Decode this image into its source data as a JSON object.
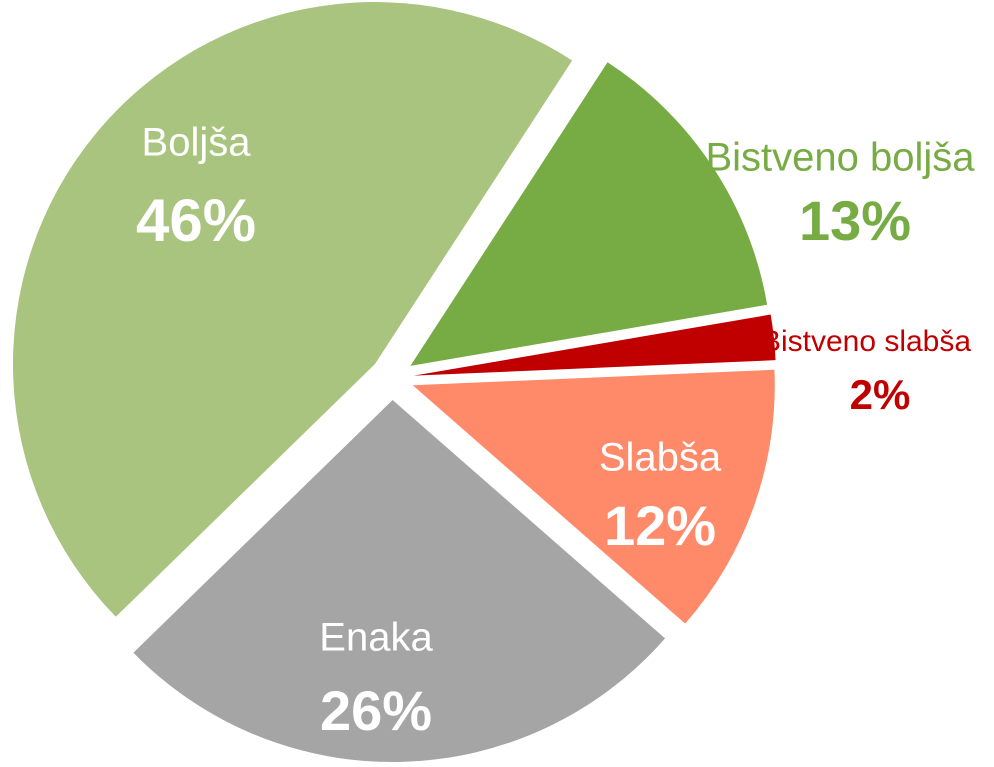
{
  "chart_data": {
    "type": "pie",
    "categories": [
      "Bistveno boljša",
      "Bistveno slabša",
      "Slabša",
      "Enaka",
      "Boljša"
    ],
    "values": [
      13,
      2,
      12,
      26,
      46
    ],
    "value_labels": [
      "13%",
      "2%",
      "12%",
      "26%",
      "46%"
    ],
    "colors": [
      "#77ab43",
      "#c00000",
      "#ff8a6a",
      "#a5a5a5",
      "#a9c47f"
    ]
  }
}
